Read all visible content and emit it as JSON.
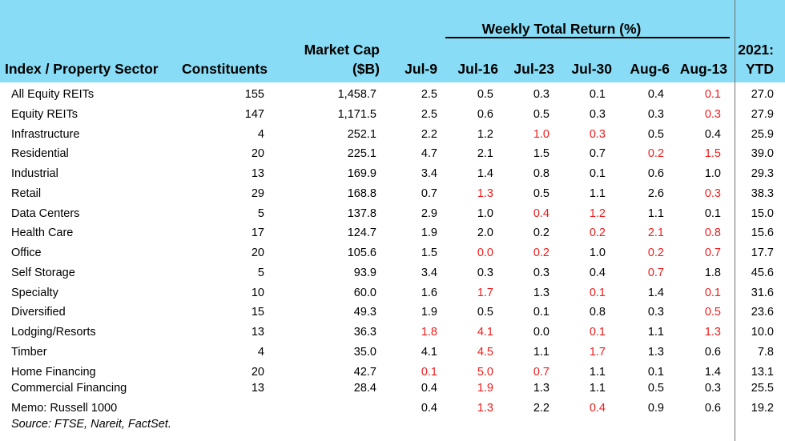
{
  "header": {
    "index_sector": "Index / Property Sector",
    "constituents": "Constituents",
    "market_cap_1": "Market Cap",
    "market_cap_2": "($B)",
    "weekly_title": "Weekly Total Return (%)",
    "weeks": [
      "Jul-9",
      "Jul-16",
      "Jul-23",
      "Jul-30",
      "Aug-6",
      "Aug-13"
    ],
    "ytd_1": "2021:",
    "ytd_2": "YTD"
  },
  "colors": {
    "header_bg": "#89dcf5",
    "negative": "#ee1c1c",
    "divider": "#6e6e6e"
  },
  "rows": [
    {
      "name": "All Equity REITs",
      "constituents": "155",
      "cap": "1,458.7",
      "weekly": [
        "2.5",
        "0.5",
        "0.3",
        "0.1",
        "0.4",
        "0.1"
      ],
      "neg": [
        false,
        false,
        false,
        false,
        false,
        true
      ],
      "ytd": "27.0"
    },
    {
      "name": "Equity REITs",
      "constituents": "147",
      "cap": "1,171.5",
      "weekly": [
        "2.5",
        "0.6",
        "0.5",
        "0.3",
        "0.3",
        "0.3"
      ],
      "neg": [
        false,
        false,
        false,
        false,
        false,
        true
      ],
      "ytd": "27.9"
    },
    {
      "name": "Infrastructure",
      "constituents": "4",
      "cap": "252.1",
      "weekly": [
        "2.2",
        "1.2",
        "1.0",
        "0.3",
        "0.5",
        "0.4"
      ],
      "neg": [
        false,
        false,
        true,
        true,
        false,
        false
      ],
      "ytd": "25.9"
    },
    {
      "name": "Residential",
      "constituents": "20",
      "cap": "225.1",
      "weekly": [
        "4.7",
        "2.1",
        "1.5",
        "0.7",
        "0.2",
        "1.5"
      ],
      "neg": [
        false,
        false,
        false,
        false,
        true,
        true
      ],
      "ytd": "39.0"
    },
    {
      "name": "Industrial",
      "constituents": "13",
      "cap": "169.9",
      "weekly": [
        "3.4",
        "1.4",
        "0.8",
        "0.1",
        "0.6",
        "1.0"
      ],
      "neg": [
        false,
        false,
        false,
        false,
        false,
        false
      ],
      "ytd": "29.3"
    },
    {
      "name": "Retail",
      "constituents": "29",
      "cap": "168.8",
      "weekly": [
        "0.7",
        "1.3",
        "0.5",
        "1.1",
        "2.6",
        "0.3"
      ],
      "neg": [
        false,
        true,
        false,
        false,
        false,
        true
      ],
      "ytd": "38.3"
    },
    {
      "name": "Data Centers",
      "constituents": "5",
      "cap": "137.8",
      "weekly": [
        "2.9",
        "1.0",
        "0.4",
        "1.2",
        "1.1",
        "0.1"
      ],
      "neg": [
        false,
        false,
        true,
        true,
        false,
        false
      ],
      "ytd": "15.0"
    },
    {
      "name": "Health Care",
      "constituents": "17",
      "cap": "124.7",
      "weekly": [
        "1.9",
        "2.0",
        "0.2",
        "0.2",
        "2.1",
        "0.8"
      ],
      "neg": [
        false,
        false,
        false,
        true,
        true,
        true
      ],
      "ytd": "15.6"
    },
    {
      "name": "Office",
      "constituents": "20",
      "cap": "105.6",
      "weekly": [
        "1.5",
        "0.0",
        "0.2",
        "1.0",
        "0.2",
        "0.7"
      ],
      "neg": [
        false,
        true,
        true,
        false,
        true,
        true
      ],
      "ytd": "17.7"
    },
    {
      "name": "Self Storage",
      "constituents": "5",
      "cap": "93.9",
      "weekly": [
        "3.4",
        "0.3",
        "0.3",
        "0.4",
        "0.7",
        "1.8"
      ],
      "neg": [
        false,
        false,
        false,
        false,
        true,
        false
      ],
      "ytd": "45.6"
    },
    {
      "name": "Specialty",
      "constituents": "10",
      "cap": "60.0",
      "weekly": [
        "1.6",
        "1.7",
        "1.3",
        "0.1",
        "1.4",
        "0.1"
      ],
      "neg": [
        false,
        true,
        false,
        true,
        false,
        true
      ],
      "ytd": "31.6"
    },
    {
      "name": "Diversified",
      "constituents": "15",
      "cap": "49.3",
      "weekly": [
        "1.9",
        "0.5",
        "0.1",
        "0.8",
        "0.3",
        "0.5"
      ],
      "neg": [
        false,
        false,
        false,
        false,
        false,
        true
      ],
      "ytd": "23.6"
    },
    {
      "name": "Lodging/Resorts",
      "constituents": "13",
      "cap": "36.3",
      "weekly": [
        "1.8",
        "4.1",
        "0.0",
        "0.1",
        "1.1",
        "1.3"
      ],
      "neg": [
        true,
        true,
        false,
        true,
        false,
        true
      ],
      "ytd": "10.0"
    },
    {
      "name": "Timber",
      "constituents": "4",
      "cap": "35.0",
      "weekly": [
        "4.1",
        "4.5",
        "1.1",
        "1.7",
        "1.3",
        "0.6"
      ],
      "neg": [
        false,
        true,
        false,
        true,
        false,
        false
      ],
      "ytd": "7.8"
    },
    {
      "name": "Home Financing",
      "constituents": "20",
      "cap": "42.7",
      "weekly": [
        "0.1",
        "5.0",
        "0.7",
        "1.1",
        "0.1",
        "1.4"
      ],
      "neg": [
        true,
        true,
        true,
        false,
        false,
        false
      ],
      "ytd": "13.1"
    },
    {
      "name": "Commercial Financing",
      "constituents": "13",
      "cap": "28.4",
      "weekly": [
        "0.4",
        "1.9",
        "1.3",
        "1.1",
        "0.5",
        "0.3"
      ],
      "neg": [
        false,
        true,
        false,
        false,
        false,
        false
      ],
      "ytd": "25.5"
    },
    {
      "name": "Memo: Russell 1000",
      "constituents": "",
      "cap": "",
      "weekly": [
        "0.4",
        "1.3",
        "2.2",
        "0.4",
        "0.9",
        "0.6"
      ],
      "neg": [
        false,
        true,
        false,
        true,
        false,
        false
      ],
      "ytd": "19.2"
    }
  ],
  "source": "Source: FTSE, Nareit, FactSet."
}
